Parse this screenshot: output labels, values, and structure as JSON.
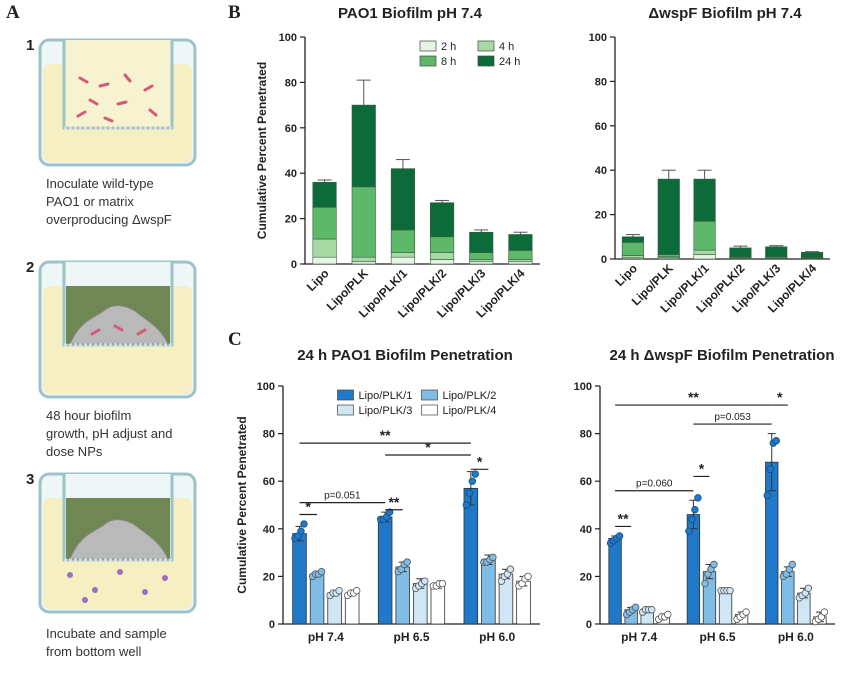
{
  "panels": [
    "A",
    "B",
    "C"
  ],
  "steps": [
    {
      "number": "1",
      "caption": [
        "Inoculate wild-type",
        "PAO1 or matrix",
        "overproducing ΔwspF"
      ]
    },
    {
      "number": "2",
      "caption": [
        "48 hour biofilm",
        "growth, pH adjust and",
        "dose NPs"
      ]
    },
    {
      "number": "3",
      "caption": [
        "Incubate and sample",
        "from bottom well"
      ]
    }
  ],
  "chart_data": [
    {
      "type": "stacked_bar",
      "title": "PAO1 Biofilm pH 7.4",
      "y_label": "Cumulative Percent Penetrated",
      "categories": [
        "Lipo",
        "Lipo/PLK",
        "Lipo/PLK/1",
        "Lipo/PLK/2",
        "Lipo/PLK/3",
        "Lipo/PLK/4"
      ],
      "series": [
        {
          "name": "2 h",
          "color": "#e6f4e6",
          "values": [
            3,
            1,
            3,
            2,
            1,
            1
          ]
        },
        {
          "name": "4 h",
          "color": "#a8d8a4",
          "values": [
            8,
            2,
            2,
            3,
            1,
            1
          ]
        },
        {
          "name": "8 h",
          "color": "#5db86a",
          "values": [
            14,
            31,
            10,
            7,
            3,
            4
          ]
        },
        {
          "name": "24 h",
          "color": "#0d6b3a",
          "values": [
            11,
            36,
            27,
            15,
            9,
            7
          ],
          "errors": [
            1,
            11,
            4,
            1,
            1,
            1
          ]
        }
      ],
      "ylim": [
        0,
        100
      ],
      "yticks": [
        0,
        20,
        40,
        60,
        80,
        100
      ],
      "legend": "upper right"
    },
    {
      "type": "stacked_bar",
      "title": "ΔwspF Biofilm pH 7.4",
      "categories": [
        "Lipo",
        "Lipo/PLK",
        "Lipo/PLK/1",
        "Lipo/PLK/2",
        "Lipo/PLK/3",
        "Lipo/PLK/4"
      ],
      "series": [
        {
          "name": "2 h",
          "color": "#e6f4e6",
          "values": [
            0.5,
            0.5,
            2,
            0.3,
            0.2,
            0.2
          ]
        },
        {
          "name": "4 h",
          "color": "#a8d8a4",
          "values": [
            1,
            0.5,
            2,
            0.3,
            0.3,
            0.2
          ]
        },
        {
          "name": "8 h",
          "color": "#5db86a",
          "values": [
            6,
            1,
            13,
            0.4,
            0.5,
            0.3
          ]
        },
        {
          "name": "24 h",
          "color": "#0d6b3a",
          "values": [
            2.5,
            34,
            19,
            4,
            4.5,
            2.3
          ],
          "errors": [
            1,
            4,
            4,
            0.8,
            0.5,
            0.3
          ]
        }
      ],
      "ylim": [
        0,
        100
      ],
      "yticks": [
        0,
        20,
        40,
        60,
        80,
        100
      ]
    },
    {
      "type": "grouped_bar",
      "title": "24 h PAO1 Biofilm Penetration",
      "y_label": "Cumulative Percent Penetrated",
      "categories": [
        "pH 7.4",
        "pH 6.5",
        "pH 6.0"
      ],
      "series": [
        {
          "name": "Lipo/PLK/1",
          "color": "#1f78c8",
          "values": [
            38,
            45,
            57
          ],
          "errors": [
            3,
            2,
            7
          ],
          "points": [
            [
              36,
              37,
              39,
              42
            ],
            [
              44,
              44,
              45,
              47
            ],
            [
              50,
              55,
              60,
              63
            ]
          ]
        },
        {
          "name": "Lipo/PLK/2",
          "color": "#7fbde6",
          "values": [
            21,
            24,
            27
          ],
          "errors": [
            1,
            2,
            2
          ],
          "points": [
            [
              20,
              21,
              21,
              22
            ],
            [
              22,
              23,
              25,
              26
            ],
            [
              26,
              26,
              27,
              28
            ]
          ]
        },
        {
          "name": "Lipo/PLK/3",
          "color": "#cfe6f5",
          "values": [
            13,
            17,
            21
          ],
          "errors": [
            1,
            2,
            2
          ],
          "points": [
            [
              12,
              13,
              13,
              14
            ],
            [
              15,
              16,
              17,
              18
            ],
            [
              18,
              20,
              21,
              23
            ]
          ]
        },
        {
          "name": "Lipo/PLK/4",
          "color": "#ffffff",
          "values": [
            13,
            16,
            18
          ],
          "errors": [
            1,
            1,
            2
          ],
          "points": [
            [
              12,
              13,
              13,
              14
            ],
            [
              16,
              16,
              17,
              17
            ],
            [
              16,
              17,
              19,
              20
            ]
          ]
        }
      ],
      "annotations": [
        {
          "label": "*",
          "from": [
            0,
            0
          ],
          "to": [
            0,
            1
          ]
        },
        {
          "label": "p=0.051",
          "from": [
            0,
            0
          ],
          "to": [
            1,
            0
          ]
        },
        {
          "label": "**",
          "from": [
            1,
            0
          ],
          "to": [
            1,
            1
          ]
        },
        {
          "label": "*",
          "from": [
            2,
            0
          ],
          "to": [
            2,
            1
          ]
        },
        {
          "label": "*",
          "from": [
            1,
            0
          ],
          "to": [
            2,
            0
          ]
        },
        {
          "label": "**",
          "from": [
            0,
            0
          ],
          "to": [
            2,
            0
          ]
        }
      ],
      "ylim": [
        0,
        100
      ],
      "yticks": [
        0,
        20,
        40,
        60,
        80,
        100
      ],
      "legend": "upper center"
    },
    {
      "type": "grouped_bar",
      "title": "24 h ΔwspF Biofilm Penetration",
      "categories": [
        "pH 7.4",
        "pH 6.5",
        "pH 6.0"
      ],
      "series": [
        {
          "name": "Lipo/PLK/1",
          "color": "#1f78c8",
          "values": [
            36,
            46,
            68
          ],
          "errors": [
            1,
            6,
            12
          ],
          "points": [
            [
              34,
              35,
              36,
              37
            ],
            [
              39,
              44,
              48,
              53
            ],
            [
              54,
              65,
              76,
              77
            ]
          ]
        },
        {
          "name": "Lipo/PLK/2",
          "color": "#7fbde6",
          "values": [
            6,
            22,
            22
          ],
          "errors": [
            1,
            3,
            2
          ],
          "points": [
            [
              4,
              5,
              6,
              7
            ],
            [
              17,
              21,
              23,
              25
            ],
            [
              20,
              21,
              23,
              25
            ]
          ]
        },
        {
          "name": "Lipo/PLK/3",
          "color": "#cfe6f5",
          "values": [
            6,
            14,
            13
          ],
          "errors": [
            1,
            1,
            2
          ],
          "points": [
            [
              5,
              6,
              6,
              6
            ],
            [
              14,
              14,
              14,
              14
            ],
            [
              11,
              12,
              13,
              15
            ]
          ]
        },
        {
          "name": "Lipo/PLK/4",
          "color": "#ffffff",
          "values": [
            3,
            4,
            3
          ],
          "errors": [
            1,
            1,
            2
          ],
          "points": [
            [
              2,
              3,
              3,
              4
            ],
            [
              2,
              3,
              4,
              5
            ],
            [
              1,
              2,
              3,
              5
            ]
          ]
        }
      ],
      "annotations": [
        {
          "label": "**",
          "from": [
            0,
            0
          ],
          "to": [
            0,
            1
          ]
        },
        {
          "label": "p=0.060",
          "from": [
            0,
            0
          ],
          "to": [
            1,
            0
          ]
        },
        {
          "label": "*",
          "from": [
            1,
            0
          ],
          "to": [
            1,
            1
          ]
        },
        {
          "label": "*",
          "from": [
            2,
            0
          ],
          "to": [
            2,
            1
          ]
        },
        {
          "label": "p=0.053",
          "from": [
            1,
            0
          ],
          "to": [
            2,
            0
          ]
        },
        {
          "label": "**",
          "from": [
            0,
            0
          ],
          "to": [
            2,
            0
          ]
        }
      ],
      "ylim": [
        0,
        100
      ],
      "yticks": [
        0,
        20,
        40,
        60,
        80,
        100
      ]
    }
  ]
}
